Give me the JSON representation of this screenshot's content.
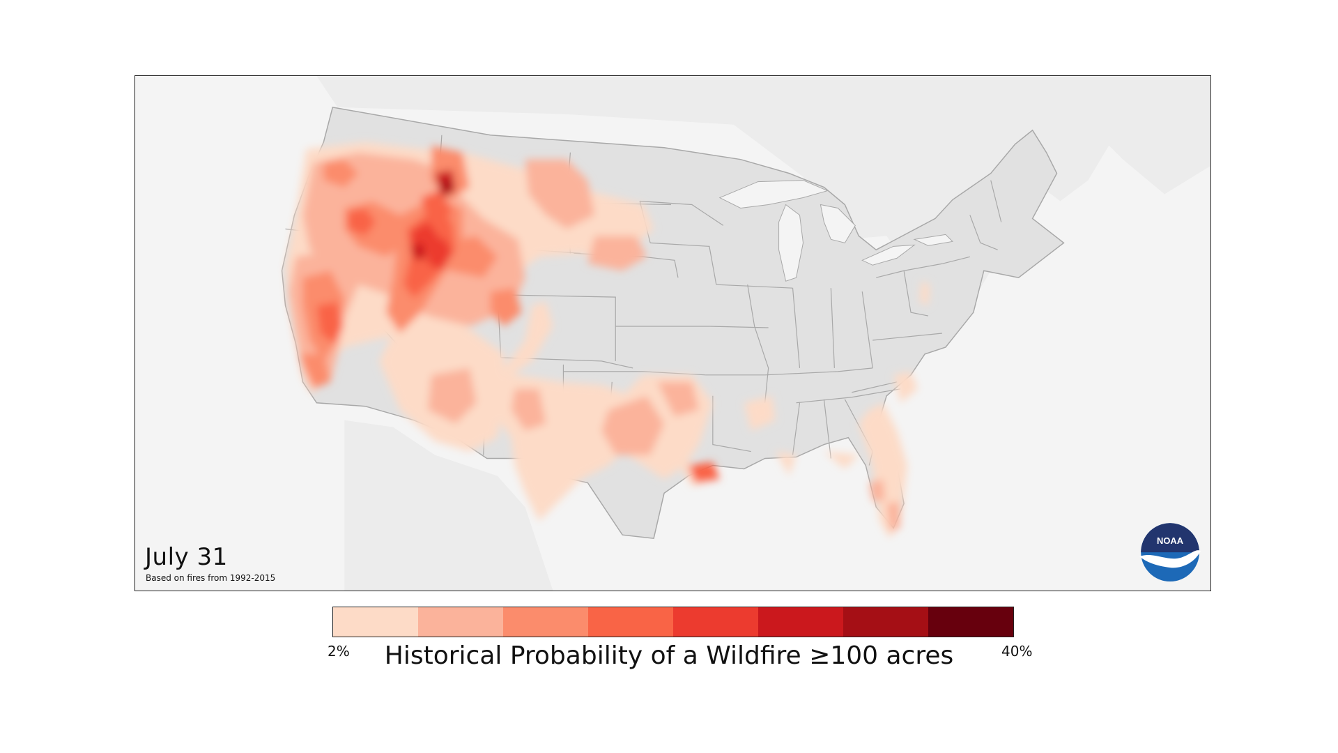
{
  "date_label": "July 31",
  "based_on": "Based on fires from 1992-2015",
  "logo_text": "NOAA",
  "legend": {
    "title": "Historical Probability of a Wildfire ≥100 acres",
    "min_label": "2%",
    "max_label": "40%",
    "colors": [
      "#fddbc7",
      "#fbb39b",
      "#fb8c6c",
      "#f96446",
      "#ec3b2f",
      "#cb181d",
      "#a50f15",
      "#67000d"
    ]
  },
  "colors": {
    "land": "#e1e1e1",
    "neighbor_land": "#ececec",
    "water": "#f4f4f4",
    "borders": "#a8a8a8"
  }
}
